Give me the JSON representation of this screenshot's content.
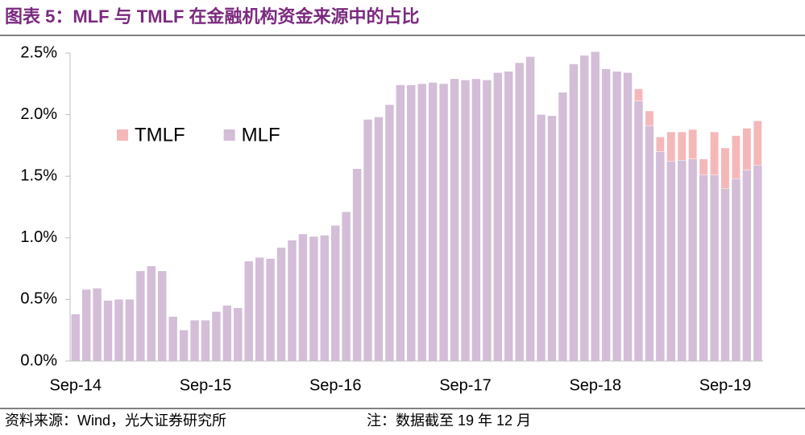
{
  "chart_data": {
    "type": "stacked_bar",
    "title": "图表 5：MLF 与 TMLF 在金融机构资金来源中的占比",
    "source": "资料来源：Wind，光大证券研究所",
    "note": "注：数据截至 19 年 12 月",
    "categories": [
      "Sep-14",
      null,
      null,
      null,
      null,
      null,
      null,
      null,
      null,
      null,
      null,
      null,
      "Sep-15",
      null,
      null,
      null,
      null,
      null,
      null,
      null,
      null,
      null,
      null,
      null,
      "Sep-16",
      null,
      null,
      null,
      null,
      null,
      null,
      null,
      null,
      null,
      null,
      null,
      "Sep-17",
      null,
      null,
      null,
      null,
      null,
      null,
      null,
      null,
      null,
      null,
      null,
      "Sep-18",
      null,
      null,
      null,
      null,
      null,
      null,
      null,
      null,
      null,
      null,
      null,
      "Sep-19",
      null,
      null,
      null
    ],
    "series": [
      {
        "name": "MLF",
        "color": "#d3bdd7",
        "values": [
          0.38,
          0.58,
          0.59,
          0.49,
          0.5,
          0.5,
          0.73,
          0.77,
          0.73,
          0.36,
          0.25,
          0.33,
          0.33,
          0.4,
          0.45,
          0.43,
          0.81,
          0.84,
          0.83,
          0.92,
          0.98,
          1.03,
          1.01,
          1.02,
          1.1,
          1.21,
          1.56,
          1.96,
          1.98,
          2.08,
          2.24,
          2.24,
          2.25,
          2.26,
          2.25,
          2.29,
          2.28,
          2.29,
          2.28,
          2.34,
          2.35,
          2.42,
          2.47,
          2.0,
          1.99,
          2.18,
          2.41,
          2.48,
          2.51,
          2.37,
          2.35,
          2.34,
          2.11,
          1.91,
          1.7,
          1.62,
          1.63,
          1.64,
          1.51,
          1.51,
          1.4,
          1.48,
          1.55,
          1.59
        ]
      },
      {
        "name": "TMLF",
        "color": "#f4b8b9",
        "values": [
          null,
          null,
          null,
          null,
          null,
          null,
          null,
          null,
          null,
          null,
          null,
          null,
          null,
          null,
          null,
          null,
          null,
          null,
          null,
          null,
          null,
          null,
          null,
          null,
          null,
          null,
          null,
          null,
          null,
          null,
          null,
          null,
          null,
          null,
          null,
          null,
          null,
          null,
          null,
          null,
          null,
          null,
          null,
          null,
          null,
          null,
          null,
          null,
          null,
          null,
          null,
          null,
          0.1,
          0.12,
          0.12,
          0.24,
          0.23,
          0.24,
          0.13,
          0.35,
          0.33,
          0.35,
          0.34,
          0.36
        ]
      }
    ],
    "ylim": [
      0,
      2.5
    ],
    "yticks": [
      {
        "value": 0,
        "label": "0.0%"
      },
      {
        "value": 0.5,
        "label": "0.5%"
      },
      {
        "value": 1,
        "label": "1.0%"
      },
      {
        "value": 1.5,
        "label": "1.5%"
      },
      {
        "value": 2,
        "label": "2.0%"
      },
      {
        "value": 2.5,
        "label": "2.5%"
      }
    ],
    "grid": false
  }
}
